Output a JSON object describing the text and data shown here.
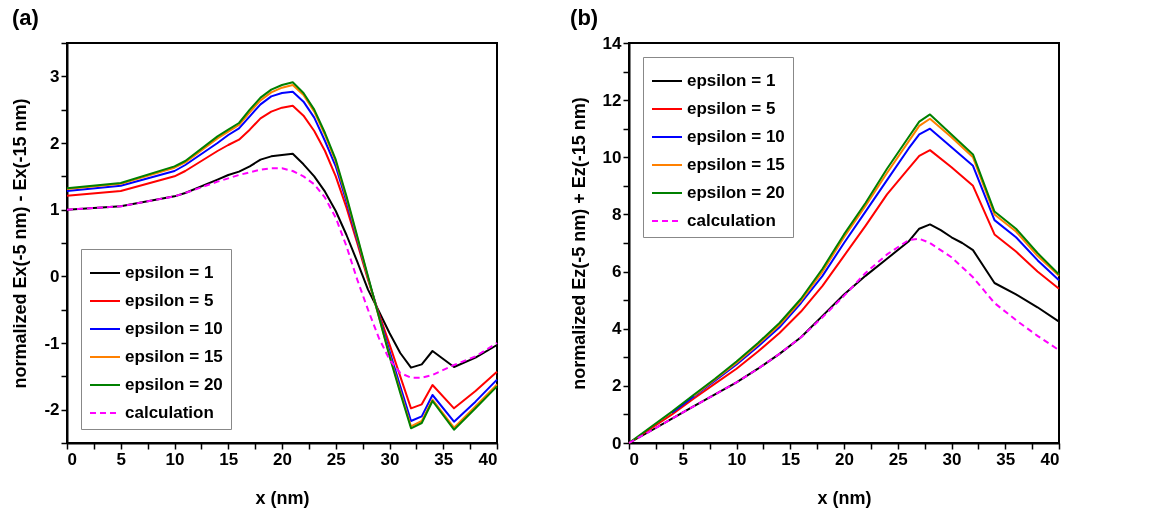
{
  "chart_data": [
    {
      "type": "line",
      "title": "(a)",
      "xlabel": "x (nm)",
      "ylabel": "normalized Ex(-5 nm) - Ex(-15 nm)",
      "xlim": [
        0,
        40
      ],
      "ylim": [
        -2.5,
        3.5
      ],
      "xticks": [
        0,
        {
          "value": 2.5,
          "label": null
        },
        5,
        {
          "value": 7.5,
          "label": null
        },
        10,
        {
          "value": 12.5,
          "label": null
        },
        15,
        {
          "value": 17.5,
          "label": null
        },
        20,
        {
          "value": 22.5,
          "label": null
        },
        25,
        {
          "value": 27.5,
          "label": null
        },
        30,
        {
          "value": 32.5,
          "label": null
        },
        35,
        {
          "value": 37.5,
          "label": null
        },
        40
      ],
      "yticks": [
        {
          "value": -2.5,
          "label": null
        },
        -2,
        {
          "value": -1.5,
          "label": null
        },
        -1,
        {
          "value": -0.5,
          "label": null
        },
        0,
        {
          "value": 0.5,
          "label": null
        },
        1,
        {
          "value": 1.5,
          "label": null
        },
        2,
        {
          "value": 2.5,
          "label": null
        },
        3,
        {
          "value": 3.5,
          "label": null
        }
      ],
      "legend": "bottom left",
      "grid": false,
      "marker": "none",
      "series": [
        {
          "name": "epsilon = 1",
          "color": "#000000",
          "line_style": "solid",
          "x": [
            0,
            5,
            10,
            11,
            14,
            15,
            16,
            17,
            18,
            19,
            20,
            21,
            22,
            23,
            24,
            25,
            26,
            27,
            28,
            29,
            30,
            31,
            32,
            33,
            34,
            36,
            38,
            40
          ],
          "values": [
            1.0,
            1.05,
            1.2,
            1.25,
            1.45,
            1.52,
            1.57,
            1.65,
            1.75,
            1.8,
            1.82,
            1.84,
            1.68,
            1.5,
            1.27,
            0.98,
            0.62,
            0.22,
            -0.2,
            -0.52,
            -0.85,
            -1.15,
            -1.37,
            -1.32,
            -1.12,
            -1.36,
            -1.22,
            -1.03
          ]
        },
        {
          "name": "epsilon = 5",
          "color": "#ff0000",
          "line_style": "solid",
          "x": [
            0,
            5,
            10,
            11,
            14,
            15,
            16,
            17,
            18,
            19,
            20,
            21,
            22,
            23,
            24,
            25,
            26,
            27,
            28,
            29,
            30,
            31,
            32,
            33,
            34,
            36,
            38,
            40
          ],
          "values": [
            1.21,
            1.28,
            1.5,
            1.58,
            1.88,
            1.97,
            2.05,
            2.2,
            2.37,
            2.47,
            2.53,
            2.56,
            2.41,
            2.18,
            1.88,
            1.5,
            1.03,
            0.5,
            -0.05,
            -0.55,
            -1.02,
            -1.5,
            -1.98,
            -1.92,
            -1.63,
            -1.98,
            -1.72,
            -1.43
          ]
        },
        {
          "name": "epsilon = 10",
          "color": "#0000ff",
          "line_style": "solid",
          "x": [
            0,
            5,
            10,
            11,
            14,
            15,
            16,
            17,
            18,
            19,
            20,
            21,
            22,
            23,
            24,
            25,
            26,
            27,
            28,
            29,
            30,
            31,
            32,
            33,
            34,
            36,
            38,
            40
          ],
          "values": [
            1.28,
            1.36,
            1.58,
            1.67,
            2.0,
            2.12,
            2.22,
            2.4,
            2.58,
            2.7,
            2.75,
            2.77,
            2.62,
            2.38,
            2.03,
            1.65,
            1.12,
            0.55,
            -0.02,
            -0.58,
            -1.12,
            -1.65,
            -2.17,
            -2.1,
            -1.78,
            -2.18,
            -1.88,
            -1.55
          ]
        },
        {
          "name": "epsilon = 15",
          "color": "#ff8000",
          "line_style": "solid",
          "x": [
            0,
            5,
            10,
            11,
            14,
            15,
            16,
            17,
            18,
            19,
            20,
            21,
            22,
            23,
            24,
            25,
            26,
            27,
            28,
            29,
            30,
            31,
            32,
            33,
            34,
            36,
            38,
            40
          ],
          "values": [
            1.31,
            1.39,
            1.63,
            1.71,
            2.07,
            2.17,
            2.27,
            2.46,
            2.64,
            2.76,
            2.83,
            2.87,
            2.72,
            2.47,
            2.12,
            1.72,
            1.17,
            0.58,
            -0.02,
            -0.6,
            -1.18,
            -1.72,
            -2.25,
            -2.17,
            -1.85,
            -2.27,
            -1.95,
            -1.62
          ]
        },
        {
          "name": "epsilon = 20",
          "color": "#008000",
          "line_style": "solid",
          "x": [
            0,
            5,
            10,
            11,
            14,
            15,
            16,
            17,
            18,
            19,
            20,
            21,
            22,
            23,
            24,
            25,
            26,
            27,
            28,
            29,
            30,
            31,
            32,
            33,
            34,
            36,
            38,
            40
          ],
          "values": [
            1.32,
            1.4,
            1.65,
            1.73,
            2.1,
            2.2,
            2.3,
            2.5,
            2.68,
            2.8,
            2.87,
            2.91,
            2.75,
            2.5,
            2.15,
            1.75,
            1.2,
            0.6,
            0.0,
            -0.6,
            -1.2,
            -1.75,
            -2.28,
            -2.2,
            -1.87,
            -2.3,
            -1.98,
            -1.65
          ]
        },
        {
          "name": "calculation",
          "color": "#ff00ff",
          "line_style": "dashed",
          "x": [
            0,
            5,
            10,
            11,
            14,
            15,
            16,
            17,
            18,
            19,
            20,
            21,
            22,
            23,
            24,
            25,
            26,
            27,
            28,
            29,
            30,
            31,
            32,
            33,
            34,
            36,
            38,
            40
          ],
          "values": [
            1.0,
            1.05,
            1.2,
            1.25,
            1.42,
            1.47,
            1.52,
            1.56,
            1.6,
            1.62,
            1.62,
            1.58,
            1.5,
            1.38,
            1.18,
            0.88,
            0.45,
            -0.05,
            -0.5,
            -0.92,
            -1.25,
            -1.45,
            -1.52,
            -1.52,
            -1.48,
            -1.33,
            -1.2,
            -1.0
          ]
        }
      ]
    },
    {
      "type": "line",
      "title": "(b)",
      "xlabel": "x (nm)",
      "ylabel": "normalized Ez(-5 nm) + Ez(-15 nm)",
      "xlim": [
        0,
        40
      ],
      "ylim": [
        0,
        14
      ],
      "xticks": [
        0,
        {
          "value": 2.5,
          "label": null
        },
        5,
        {
          "value": 7.5,
          "label": null
        },
        10,
        {
          "value": 12.5,
          "label": null
        },
        15,
        {
          "value": 17.5,
          "label": null
        },
        20,
        {
          "value": 22.5,
          "label": null
        },
        25,
        {
          "value": 27.5,
          "label": null
        },
        30,
        {
          "value": 32.5,
          "label": null
        },
        35,
        {
          "value": 37.5,
          "label": null
        },
        40
      ],
      "yticks": [
        0,
        {
          "value": 1,
          "label": null
        },
        2,
        {
          "value": 3,
          "label": null
        },
        4,
        {
          "value": 5,
          "label": null
        },
        6,
        {
          "value": 7,
          "label": null
        },
        8,
        {
          "value": 9,
          "label": null
        },
        10,
        {
          "value": 11,
          "label": null
        },
        12,
        {
          "value": 13,
          "label": null
        },
        14
      ],
      "legend": "top left",
      "grid": false,
      "marker": "none",
      "series": [
        {
          "name": "epsilon = 1",
          "color": "#000000",
          "line_style": "solid",
          "x": [
            0,
            2,
            4,
            6,
            8,
            10,
            12,
            14,
            16,
            18,
            20,
            22,
            24,
            26,
            27,
            28,
            29,
            30,
            31,
            32,
            34,
            36,
            38,
            40
          ],
          "values": [
            0,
            0.42,
            0.85,
            1.28,
            1.7,
            2.12,
            2.6,
            3.12,
            3.7,
            4.45,
            5.2,
            5.85,
            6.45,
            7.05,
            7.5,
            7.65,
            7.45,
            7.2,
            7.0,
            6.75,
            5.6,
            5.2,
            4.75,
            4.25
          ]
        },
        {
          "name": "epsilon = 5",
          "color": "#ff0000",
          "line_style": "solid",
          "x": [
            0,
            2,
            4,
            6,
            8,
            10,
            12,
            14,
            16,
            18,
            20,
            22,
            24,
            26,
            27,
            28,
            30,
            32,
            34,
            36,
            38,
            40
          ],
          "values": [
            0,
            0.5,
            1.0,
            1.55,
            2.08,
            2.6,
            3.2,
            3.85,
            4.6,
            5.5,
            6.55,
            7.6,
            8.7,
            9.6,
            10.05,
            10.25,
            9.65,
            9.0,
            7.3,
            6.7,
            6.0,
            5.4
          ]
        },
        {
          "name": "epsilon = 10",
          "color": "#0000ff",
          "line_style": "solid",
          "x": [
            4,
            6,
            8,
            10,
            12,
            14,
            16,
            18,
            20,
            22,
            24,
            26,
            27,
            28,
            30,
            32,
            34,
            36,
            38,
            40
          ],
          "values": [
            1.06,
            1.62,
            2.18,
            2.75,
            3.38,
            4.05,
            4.9,
            5.85,
            7.0,
            8.1,
            9.2,
            10.3,
            10.8,
            11.0,
            10.35,
            9.7,
            7.8,
            7.2,
            6.4,
            5.7
          ]
        },
        {
          "name": "epsilon = 15",
          "color": "#ff8000",
          "line_style": "solid",
          "x": [
            6,
            8,
            10,
            12,
            14,
            16,
            18,
            20,
            22,
            24,
            26,
            27,
            28,
            30,
            32,
            34,
            36,
            38,
            40
          ],
          "values": [
            1.65,
            2.22,
            2.8,
            3.45,
            4.13,
            4.98,
            6.0,
            7.2,
            8.3,
            9.45,
            10.55,
            11.1,
            11.35,
            10.7,
            10.0,
            8.0,
            7.4,
            6.55,
            5.85
          ]
        },
        {
          "name": "epsilon = 20",
          "color": "#008000",
          "line_style": "solid",
          "x": [
            0,
            2,
            4,
            6,
            8,
            10,
            12,
            14,
            16,
            18,
            20,
            22,
            24,
            26,
            27,
            28,
            30,
            32,
            34,
            36,
            38,
            40
          ],
          "values": [
            0,
            0.55,
            1.1,
            1.68,
            2.25,
            2.85,
            3.5,
            4.2,
            5.05,
            6.1,
            7.3,
            8.4,
            9.6,
            10.7,
            11.25,
            11.5,
            10.8,
            10.1,
            8.1,
            7.5,
            6.65,
            5.9
          ]
        },
        {
          "name": "calculation",
          "color": "#ff00ff",
          "line_style": "dashed",
          "x": [
            0,
            2,
            4,
            6,
            8,
            10,
            12,
            14,
            16,
            18,
            20,
            22,
            24,
            26,
            27,
            28,
            30,
            32,
            34,
            36,
            38,
            40
          ],
          "values": [
            0,
            0.42,
            0.85,
            1.28,
            1.7,
            2.12,
            2.6,
            3.12,
            3.7,
            4.4,
            5.15,
            5.95,
            6.6,
            7.1,
            7.15,
            7.0,
            6.5,
            5.8,
            4.9,
            4.3,
            3.75,
            3.25
          ]
        }
      ]
    }
  ]
}
